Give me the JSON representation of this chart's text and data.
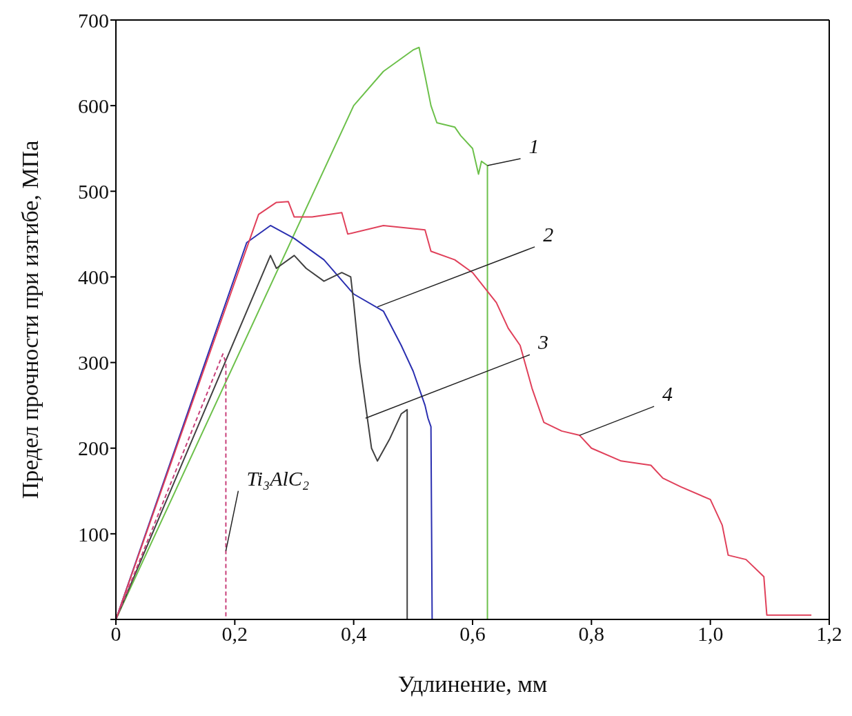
{
  "chart_data": {
    "type": "line",
    "xlabel": "Удлинение, мм",
    "ylabel": "Предел прочности при изгибе, МПа",
    "xlim": [
      0,
      1.2
    ],
    "xticks": [
      {
        "value": 0,
        "label": "0"
      },
      {
        "value": 0.2,
        "label": "0,2"
      },
      {
        "value": 0.4,
        "label": "0,4"
      },
      {
        "value": 0.6,
        "label": "0,6"
      },
      {
        "value": 0.8,
        "label": "0,8"
      },
      {
        "value": 1.0,
        "label": "1,0"
      },
      {
        "value": 1.2,
        "label": "1,2"
      }
    ],
    "ylim": [
      0,
      700
    ],
    "yticks": [
      {
        "value": 0,
        "label": null
      },
      100,
      200,
      300,
      400,
      500,
      600,
      700
    ],
    "grid": false,
    "legend": false,
    "marker": "none",
    "series": [
      {
        "color": "#6cc04a",
        "line_style": "solid",
        "x": [
          0,
          0.4,
          0.45,
          0.5,
          0.51,
          0.52,
          0.53,
          0.54,
          0.57,
          0.58,
          0.6,
          0.61,
          0.615,
          0.625,
          0.625
        ],
        "values": [
          0,
          600,
          640,
          665,
          668,
          635,
          600,
          580,
          575,
          565,
          550,
          520,
          535,
          530,
          0
        ]
      },
      {
        "color": "#2a2fb0",
        "line_style": "solid",
        "x": [
          0,
          0.22,
          0.26,
          0.3,
          0.35,
          0.4,
          0.45,
          0.48,
          0.5,
          0.52,
          0.525,
          0.53,
          0.532
        ],
        "values": [
          0,
          440,
          460,
          445,
          420,
          380,
          360,
          320,
          290,
          250,
          235,
          225,
          0
        ]
      },
      {
        "color": "#404040",
        "line_style": "solid",
        "x": [
          0,
          0.26,
          0.27,
          0.3,
          0.32,
          0.35,
          0.38,
          0.395,
          0.4,
          0.41,
          0.42,
          0.43,
          0.44,
          0.46,
          0.48,
          0.49,
          0.49
        ],
        "values": [
          0,
          425,
          410,
          425,
          410,
          395,
          405,
          400,
          370,
          300,
          250,
          200,
          185,
          210,
          240,
          245,
          0
        ]
      },
      {
        "color": "#e0405a",
        "line_style": "solid",
        "x": [
          0,
          0.24,
          0.27,
          0.29,
          0.3,
          0.33,
          0.38,
          0.39,
          0.45,
          0.52,
          0.53,
          0.57,
          0.6,
          0.64,
          0.66,
          0.68,
          0.7,
          0.72,
          0.75,
          0.78,
          0.8,
          0.85,
          0.9,
          0.92,
          0.95,
          1.0,
          1.02,
          1.03,
          1.06,
          1.09,
          1.095,
          1.17
        ],
        "values": [
          0,
          473,
          487,
          488,
          470,
          470,
          475,
          450,
          460,
          455,
          430,
          420,
          405,
          370,
          340,
          320,
          270,
          230,
          220,
          215,
          200,
          185,
          180,
          165,
          155,
          140,
          110,
          75,
          70,
          50,
          5,
          5
        ]
      },
      {
        "color": "#c8407a",
        "line_style": "dashed",
        "x": [
          0,
          0.18,
          0.185,
          0.185
        ],
        "values": [
          0,
          310,
          300,
          0
        ]
      }
    ],
    "annotations": [
      {
        "text": "1",
        "x": 0.625,
        "y": 530
      },
      {
        "text": "2",
        "x": 0.44,
        "y": 365
      },
      {
        "text": "3",
        "x": 0.42,
        "y": 235
      },
      {
        "text": "4",
        "x": 0.78,
        "y": 215
      },
      {
        "text": "Ti₃AlC₂",
        "x": 0.185,
        "y": 80
      }
    ]
  }
}
